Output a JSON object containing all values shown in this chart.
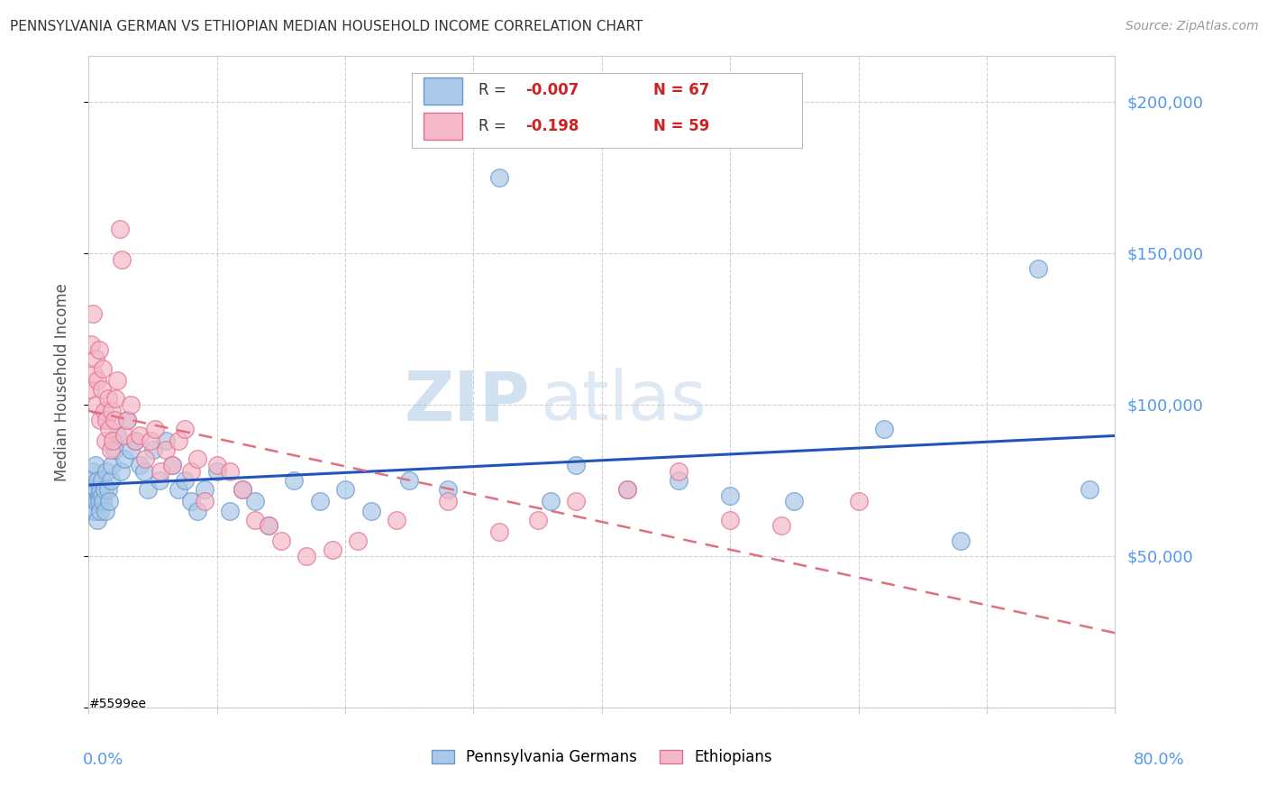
{
  "title": "PENNSYLVANIA GERMAN VS ETHIOPIAN MEDIAN HOUSEHOLD INCOME CORRELATION CHART",
  "source": "Source: ZipAtlas.com",
  "ylabel": "Median Household Income",
  "watermark_zip": "ZIP",
  "watermark_atlas": "atlas",
  "yticks": [
    0,
    50000,
    100000,
    150000,
    200000
  ],
  "ytick_labels": [
    "",
    "$50,000",
    "$100,000",
    "$150,000",
    "$200,000"
  ],
  "xlim": [
    0.0,
    0.8
  ],
  "ylim": [
    0,
    215000
  ],
  "background_color": "#ffffff",
  "grid_color": "#d0d0d0",
  "spine_color": "#cccccc",
  "ytick_color": "#5599ee",
  "xtick_color": "#5599ee",
  "series1_color": "#aac8e8",
  "series1_edge": "#6699cc",
  "series2_color": "#f5b8c8",
  "series2_edge": "#e07090",
  "trendline1_color": "#2255bb",
  "trendline2_color": "#e07080",
  "series1_label": "Pennsylvania Germans",
  "series2_label": "Ethiopians",
  "legend_r1_label": "R = ",
  "legend_r1_val": "-0.007",
  "legend_n1": "N = 67",
  "legend_r2_label": "R =  ",
  "legend_r2_val": "-0.198",
  "legend_n2": "N = 59",
  "legend_val_color": "#cc2222",
  "legend_label_color": "#333333",
  "pa_german_x": [
    0.001,
    0.002,
    0.003,
    0.003,
    0.004,
    0.004,
    0.005,
    0.005,
    0.006,
    0.006,
    0.007,
    0.007,
    0.008,
    0.008,
    0.009,
    0.009,
    0.01,
    0.01,
    0.011,
    0.012,
    0.013,
    0.014,
    0.015,
    0.016,
    0.017,
    0.018,
    0.02,
    0.022,
    0.025,
    0.028,
    0.03,
    0.033,
    0.036,
    0.04,
    0.043,
    0.046,
    0.05,
    0.055,
    0.06,
    0.065,
    0.07,
    0.075,
    0.08,
    0.085,
    0.09,
    0.1,
    0.11,
    0.12,
    0.13,
    0.14,
    0.16,
    0.18,
    0.2,
    0.22,
    0.25,
    0.28,
    0.32,
    0.36,
    0.38,
    0.42,
    0.46,
    0.5,
    0.55,
    0.62,
    0.68,
    0.74,
    0.78
  ],
  "pa_german_y": [
    75000,
    72000,
    78000,
    65000,
    70000,
    68000,
    80000,
    65000,
    72000,
    68000,
    75000,
    62000,
    70000,
    68000,
    72000,
    65000,
    75000,
    70000,
    68000,
    72000,
    65000,
    78000,
    72000,
    68000,
    75000,
    80000,
    85000,
    90000,
    78000,
    82000,
    95000,
    85000,
    88000,
    80000,
    78000,
    72000,
    85000,
    75000,
    88000,
    80000,
    72000,
    75000,
    68000,
    65000,
    72000,
    78000,
    65000,
    72000,
    68000,
    60000,
    75000,
    68000,
    72000,
    65000,
    75000,
    72000,
    175000,
    68000,
    80000,
    72000,
    75000,
    70000,
    68000,
    92000,
    55000,
    145000,
    72000
  ],
  "ethiopian_x": [
    0.001,
    0.002,
    0.003,
    0.004,
    0.005,
    0.006,
    0.007,
    0.008,
    0.009,
    0.01,
    0.011,
    0.012,
    0.013,
    0.014,
    0.015,
    0.016,
    0.017,
    0.018,
    0.019,
    0.02,
    0.021,
    0.022,
    0.024,
    0.026,
    0.028,
    0.03,
    0.033,
    0.036,
    0.04,
    0.044,
    0.048,
    0.052,
    0.056,
    0.06,
    0.065,
    0.07,
    0.075,
    0.08,
    0.085,
    0.09,
    0.1,
    0.11,
    0.12,
    0.13,
    0.14,
    0.15,
    0.17,
    0.19,
    0.21,
    0.24,
    0.28,
    0.32,
    0.35,
    0.38,
    0.42,
    0.46,
    0.5,
    0.54,
    0.6
  ],
  "ethiopian_y": [
    105000,
    120000,
    130000,
    110000,
    115000,
    100000,
    108000,
    118000,
    95000,
    105000,
    112000,
    98000,
    88000,
    95000,
    102000,
    92000,
    85000,
    98000,
    88000,
    95000,
    102000,
    108000,
    158000,
    148000,
    90000,
    95000,
    100000,
    88000,
    90000,
    82000,
    88000,
    92000,
    78000,
    85000,
    80000,
    88000,
    92000,
    78000,
    82000,
    68000,
    80000,
    78000,
    72000,
    62000,
    60000,
    55000,
    50000,
    52000,
    55000,
    62000,
    68000,
    58000,
    62000,
    68000,
    72000,
    78000,
    62000,
    60000,
    68000
  ]
}
